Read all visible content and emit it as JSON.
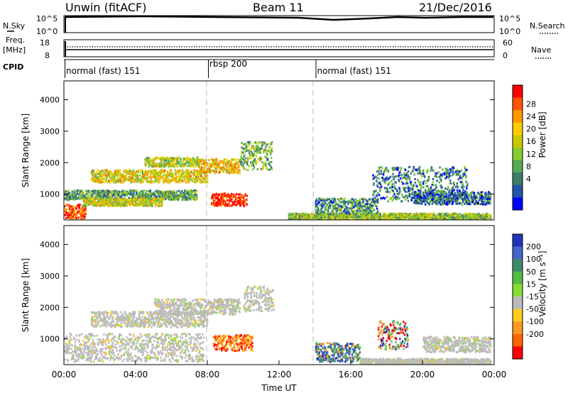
{
  "header": {
    "title": "Unwin (fitACF)",
    "beam": "Beam 11",
    "date": "21/Dec/2016"
  },
  "chart_data": [
    {
      "type": "line",
      "panel": "sky-search",
      "left_label": "N.Sky",
      "right_label": "N.Search",
      "left_ticks": [
        "10^5",
        "10^0"
      ],
      "right_ticks": [
        "10^5",
        "10^0"
      ]
    },
    {
      "type": "line",
      "panel": "freq-nave",
      "left_label_line1": "Freq.",
      "left_label_line2": "[MHz]",
      "left_ticks": [
        "18",
        "8"
      ],
      "right_label": "Nave",
      "right_ticks": [
        "60",
        "0"
      ],
      "freq_mhz": 12.0,
      "nave": 22
    },
    {
      "type": "table",
      "panel": "cpid",
      "label": "CPID",
      "segments": [
        {
          "name": "normal (fast) 151",
          "start_hour": 0,
          "end_hour": 8
        },
        {
          "name": "rbsp 200",
          "start_hour": 8,
          "end_hour": 14
        },
        {
          "name": "normal (fast) 151",
          "start_hour": 14,
          "end_hour": 24
        }
      ]
    },
    {
      "type": "heatmap",
      "panel": "power",
      "ylabel": "Slant Range [km]",
      "yticks": [
        1000,
        2000,
        3000,
        4000
      ],
      "ylim": [
        180,
        4600
      ],
      "xlim": [
        0,
        24
      ],
      "colorbar_label": "Power [dB]",
      "colorbar_ticks": [
        "28",
        "24",
        "20",
        "16",
        "12",
        "8",
        "4"
      ],
      "colors": [
        "#ff0000",
        "#ff5500",
        "#ff9900",
        "#ffcc00",
        "#c8c800",
        "#88cc33",
        "#55aa55",
        "#3d7a6a",
        "#2255aa",
        "#0000ff"
      ],
      "bands": [
        {
          "t0": 0.0,
          "t1": 1.2,
          "r0": 250,
          "r1": 700,
          "level": 0.88
        },
        {
          "t0": 0.0,
          "t1": 7.4,
          "r0": 850,
          "r1": 1150,
          "level": 0.35
        },
        {
          "t0": 1.0,
          "t1": 5.5,
          "r0": 650,
          "r1": 900,
          "level": 0.55
        },
        {
          "t0": 1.5,
          "t1": 8.0,
          "r0": 1400,
          "r1": 1800,
          "level": 0.6
        },
        {
          "t0": 4.5,
          "t1": 7.5,
          "r0": 1900,
          "r1": 2200,
          "level": 0.5
        },
        {
          "t0": 8.2,
          "t1": 10.2,
          "r0": 650,
          "r1": 1050,
          "level": 0.95
        },
        {
          "t0": 7.5,
          "t1": 9.8,
          "r0": 1700,
          "r1": 2150,
          "level": 0.65
        },
        {
          "t0": 9.8,
          "t1": 11.6,
          "r0": 1800,
          "r1": 2700,
          "level": 0.4
        },
        {
          "t0": 12.5,
          "t1": 23.8,
          "r0": 220,
          "r1": 420,
          "level": 0.45
        },
        {
          "t0": 14.0,
          "t1": 17.5,
          "r0": 400,
          "r1": 900,
          "level": 0.3
        },
        {
          "t0": 17.2,
          "t1": 22.5,
          "r0": 800,
          "r1": 1900,
          "level": 0.25
        },
        {
          "t0": 19.5,
          "t1": 23.8,
          "r0": 700,
          "r1": 1100,
          "level": 0.2
        }
      ]
    },
    {
      "type": "heatmap",
      "panel": "velocity",
      "ylabel": "Slant Range [km]",
      "yticks": [
        1000,
        2000,
        3000,
        4000
      ],
      "ylim": [
        180,
        4600
      ],
      "xlim": [
        0,
        24
      ],
      "xlabel": "Time UT",
      "xticks": [
        "00:00",
        "04:00",
        "08:00",
        "12:00",
        "16:00",
        "20:00",
        "00:00"
      ],
      "colorbar_label": "Velocity [m s⁻¹]",
      "colorbar_ticks": [
        "200",
        "100",
        "50",
        "15",
        "-15",
        "-50",
        "-100",
        "-200"
      ],
      "colors": [
        "#2233bb",
        "#4466cc",
        "#3d8a6a",
        "#55bb44",
        "#88dd33",
        "#bbbbbb",
        "#ffcc22",
        "#ff9922",
        "#ff6600",
        "#ff0000"
      ],
      "bands": [
        {
          "t0": 0.0,
          "t1": 7.8,
          "r0": 300,
          "r1": 1200,
          "vel": "gray"
        },
        {
          "t0": 1.5,
          "t1": 8.0,
          "r0": 1400,
          "r1": 1900,
          "vel": "gray"
        },
        {
          "t0": 5.0,
          "t1": 9.8,
          "r0": 1800,
          "r1": 2300,
          "vel": "gray"
        },
        {
          "t0": 8.3,
          "t1": 10.5,
          "r0": 650,
          "r1": 1150,
          "vel": "orange"
        },
        {
          "t0": 10.0,
          "t1": 11.7,
          "r0": 1900,
          "r1": 2700,
          "vel": "gray"
        },
        {
          "t0": 14.0,
          "t1": 16.5,
          "r0": 300,
          "r1": 900,
          "vel": "blue"
        },
        {
          "t0": 16.5,
          "t1": 23.8,
          "r0": 200,
          "r1": 400,
          "vel": "gray"
        },
        {
          "t0": 17.5,
          "t1": 19.2,
          "r0": 700,
          "r1": 1600,
          "vel": "mixed"
        },
        {
          "t0": 20.0,
          "t1": 23.8,
          "r0": 600,
          "r1": 1100,
          "vel": "gray"
        }
      ]
    }
  ]
}
